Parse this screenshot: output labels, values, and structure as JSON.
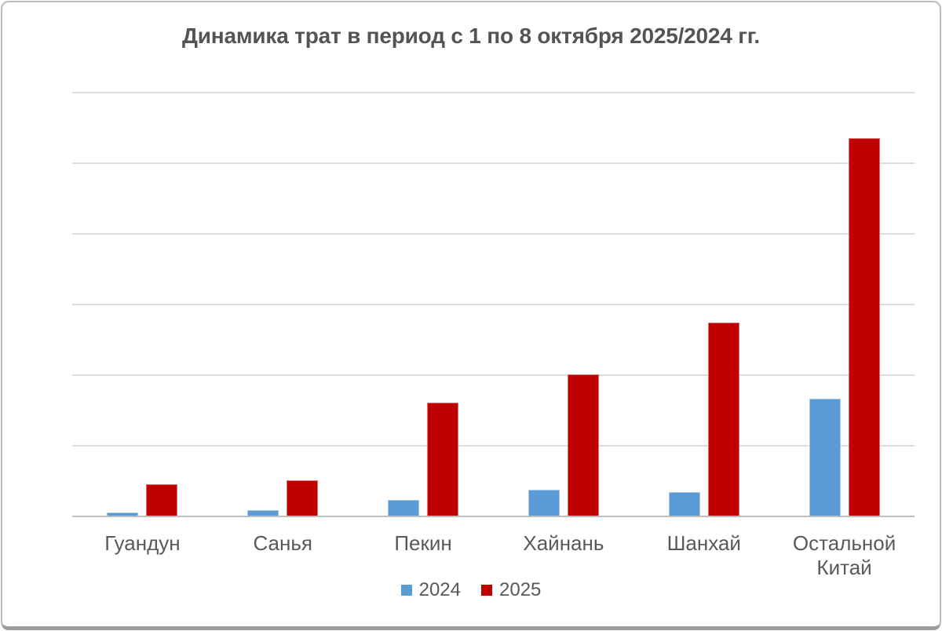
{
  "title": "Динамика трат в период с 1 по 8 октября 2025/2024 гг.",
  "colors": {
    "series_2024": "#5B9BD5",
    "series_2025": "#C00000",
    "gridline": "#DCDCDC",
    "axis_line": "#BFBFBF",
    "text": "#595959",
    "title_text": "#545454",
    "frame_border": "#BCBCBC",
    "background": "#FFFFFF"
  },
  "legend": {
    "position": "bottom-center",
    "items": [
      {
        "label": "2024",
        "color": "#5B9BD5"
      },
      {
        "label": "2025",
        "color": "#C00000"
      }
    ]
  },
  "chart_data": {
    "type": "bar",
    "title": "Динамика трат в период с 1 по 8 октября 2025/2024 гг.",
    "categories": [
      "Гуандун",
      "Санья",
      "Пекин",
      "Хайнань",
      "Шанхай",
      "Остальной Китай"
    ],
    "series": [
      {
        "name": "2024",
        "color": "#5B9BD5",
        "values": [
          0.04,
          0.08,
          0.22,
          0.37,
          0.33,
          1.66
        ]
      },
      {
        "name": "2025",
        "color": "#C00000",
        "values": [
          0.45,
          0.5,
          1.6,
          2.0,
          2.73,
          5.34
        ]
      }
    ],
    "xlabel": "",
    "ylabel": "",
    "ylim": [
      0,
      6
    ],
    "gridline_step": 1,
    "gridlines_visible": true,
    "y_tick_labels_visible": false,
    "legend_position": "bottom-center",
    "value_note": "values in gridline units; no numeric axis labels are rendered in the image"
  }
}
